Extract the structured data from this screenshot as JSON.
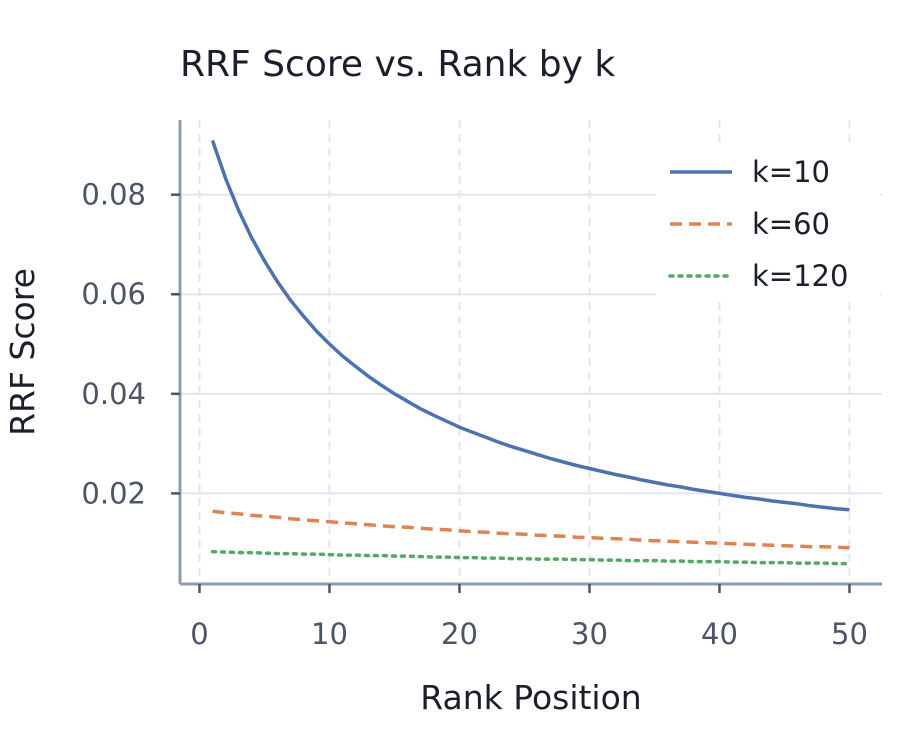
{
  "chart_data": {
    "type": "line",
    "title": "RRF Score vs. Rank by k",
    "xlabel": "Rank Position",
    "ylabel": "RRF Score",
    "xlim": [
      -1.5,
      52.5
    ],
    "ylim": [
      0.0018,
      0.095
    ],
    "x_ticks": [
      0,
      10,
      20,
      30,
      40,
      50
    ],
    "x_tick_labels": [
      "0",
      "10",
      "20",
      "30",
      "40",
      "50"
    ],
    "y_ticks": [
      0.02,
      0.04,
      0.06,
      0.08
    ],
    "y_tick_labels": [
      "0.02",
      "0.04",
      "0.06",
      "0.08"
    ],
    "grid": true,
    "legend_position": "top-right",
    "x": [
      1,
      2,
      3,
      4,
      5,
      6,
      7,
      8,
      9,
      10,
      11,
      12,
      13,
      14,
      15,
      16,
      17,
      18,
      19,
      20,
      21,
      22,
      23,
      24,
      25,
      26,
      27,
      28,
      29,
      30,
      31,
      32,
      33,
      34,
      35,
      36,
      37,
      38,
      39,
      40,
      41,
      42,
      43,
      44,
      45,
      46,
      47,
      48,
      49,
      50
    ],
    "series": [
      {
        "name": "k=10",
        "color": "#4c72b0",
        "dash": "solid",
        "values": [
          0.0909,
          0.0833,
          0.0769,
          0.0714,
          0.0667,
          0.0625,
          0.0588,
          0.0556,
          0.0526,
          0.05,
          0.0476,
          0.0455,
          0.0435,
          0.0417,
          0.04,
          0.0385,
          0.037,
          0.0357,
          0.0345,
          0.0333,
          0.0323,
          0.0313,
          0.0303,
          0.0294,
          0.0286,
          0.0278,
          0.027,
          0.0263,
          0.0256,
          0.025,
          0.0244,
          0.0238,
          0.0233,
          0.0227,
          0.0222,
          0.0217,
          0.0213,
          0.0208,
          0.0204,
          0.02,
          0.0196,
          0.0192,
          0.0189,
          0.0185,
          0.0182,
          0.0179,
          0.0175,
          0.0172,
          0.0169,
          0.0167
        ]
      },
      {
        "name": "k=60",
        "color": "#dd8452",
        "dash": "dashed",
        "values": [
          0.0164,
          0.0161,
          0.0159,
          0.0156,
          0.0154,
          0.0152,
          0.0149,
          0.0147,
          0.0145,
          0.0143,
          0.0141,
          0.0139,
          0.0137,
          0.0135,
          0.0133,
          0.0132,
          0.013,
          0.0128,
          0.0127,
          0.0125,
          0.0123,
          0.0122,
          0.012,
          0.0119,
          0.0118,
          0.0116,
          0.0115,
          0.0114,
          0.0112,
          0.0111,
          0.011,
          0.0109,
          0.0108,
          0.0106,
          0.0105,
          0.0104,
          0.0103,
          0.0102,
          0.0101,
          0.01,
          0.0099,
          0.0098,
          0.0097,
          0.0096,
          0.0095,
          0.0094,
          0.0093,
          0.0093,
          0.0092,
          0.0091
        ]
      },
      {
        "name": "k=120",
        "color": "#55a868",
        "dash": "dotted",
        "values": [
          0.0083,
          0.0082,
          0.0081,
          0.0081,
          0.008,
          0.0079,
          0.0079,
          0.0078,
          0.0078,
          0.0077,
          0.0076,
          0.0076,
          0.0075,
          0.0075,
          0.0074,
          0.0074,
          0.0073,
          0.0072,
          0.0072,
          0.0071,
          0.0071,
          0.007,
          0.007,
          0.0069,
          0.0069,
          0.0068,
          0.0068,
          0.0068,
          0.0067,
          0.0067,
          0.0066,
          0.0066,
          0.0065,
          0.0065,
          0.0065,
          0.0064,
          0.0064,
          0.0063,
          0.0063,
          0.0063,
          0.0062,
          0.0062,
          0.0061,
          0.0061,
          0.0061,
          0.006,
          0.006,
          0.006,
          0.0059,
          0.0059
        ]
      }
    ]
  }
}
